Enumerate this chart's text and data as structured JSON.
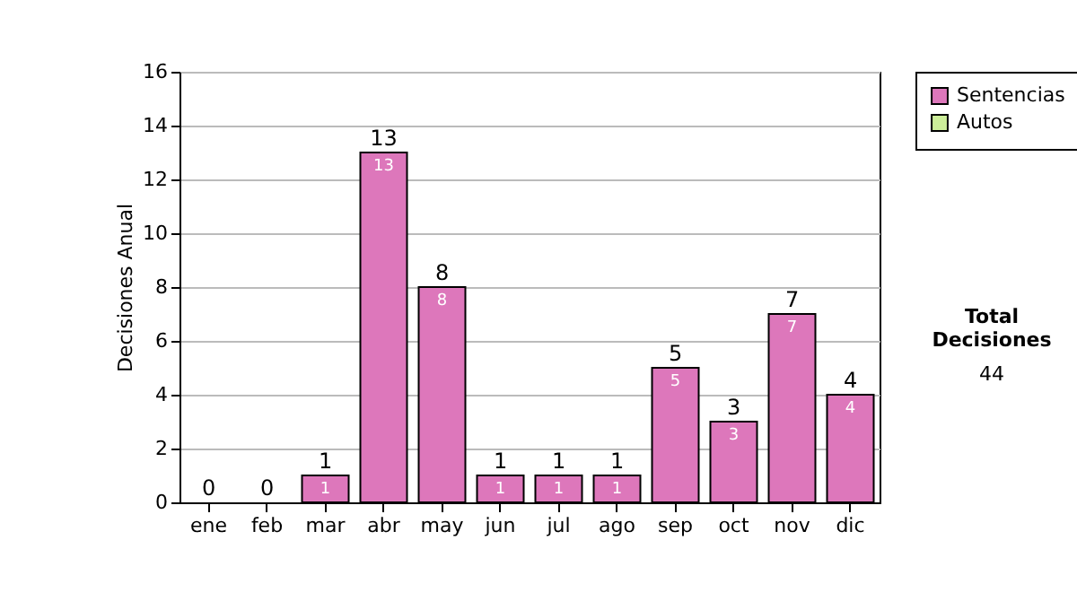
{
  "chart_data": {
    "type": "bar",
    "ylabel": "Decisiones Anual",
    "categories": [
      "ene",
      "feb",
      "mar",
      "abr",
      "may",
      "jun",
      "jul",
      "ago",
      "sep",
      "oct",
      "nov",
      "dic"
    ],
    "series": [
      {
        "name": "Sentencias",
        "color": "#dd77bb",
        "values": [
          0,
          0,
          1,
          13,
          8,
          1,
          1,
          1,
          5,
          3,
          7,
          4
        ],
        "value_labels": [
          null,
          null,
          "1",
          "13",
          "8",
          "1",
          "1",
          "1",
          "5",
          "3",
          "7",
          "4"
        ]
      },
      {
        "name": "Autos",
        "color": "#ccee99",
        "values": [
          0,
          0,
          0,
          0,
          0,
          0,
          0,
          0,
          0,
          0,
          0,
          0
        ]
      }
    ],
    "stacked": true,
    "totals": [
      "0",
      "0",
      "1",
      "13",
      "8",
      "1",
      "1",
      "1",
      "5",
      "3",
      "7",
      "4"
    ],
    "ylim": [
      0,
      16
    ],
    "yticks": [
      0,
      2,
      4,
      6,
      8,
      10,
      12,
      14,
      16
    ],
    "grid": "y",
    "legend": "right",
    "annotations": [
      "Total Decisiones",
      "44"
    ]
  }
}
